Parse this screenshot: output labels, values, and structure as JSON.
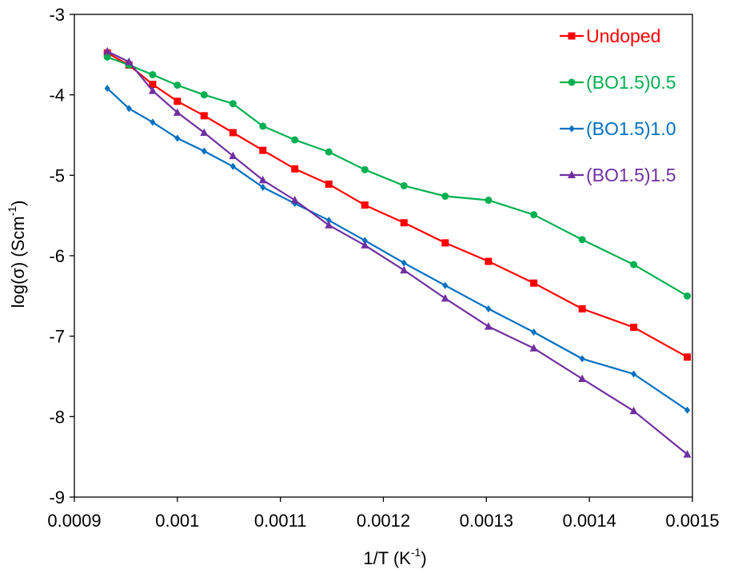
{
  "chart_data": {
    "type": "line",
    "title": "",
    "xlabel": "1/T (K",
    "xlabel_sup": "-1",
    "xlabel_close": ")",
    "ylabel": "log(σ) (Scm",
    "ylabel_sup": "-1",
    "ylabel_close": ")",
    "xlim": [
      0.0009,
      0.0015
    ],
    "ylim": [
      -9,
      -3
    ],
    "xticks": [
      0.0009,
      0.001,
      0.0011,
      0.0012,
      0.0013,
      0.0014,
      0.0015
    ],
    "xtick_labels": [
      "0.0009",
      "0.001",
      "0.0011",
      "0.0012",
      "0.0013",
      "0.0014",
      "0.0015"
    ],
    "yticks": [
      -3,
      -4,
      -5,
      -6,
      -7,
      -8,
      -9
    ],
    "ytick_labels": [
      "-3",
      "-4",
      "-5",
      "-6",
      "-7",
      "-8",
      "-9"
    ],
    "grid": false,
    "legend_position": "top-right",
    "x": [
      0.000932,
      0.000953,
      0.000976,
      0.001,
      0.001026,
      0.001054,
      0.001083,
      0.001114,
      0.001147,
      0.001182,
      0.00122,
      0.00126,
      0.001302,
      0.001346,
      0.001393,
      0.001443,
      0.001495
    ],
    "series": [
      {
        "name": "Undoped",
        "color": "#ff0000",
        "marker": "square",
        "values": [
          -3.48,
          -3.63,
          -3.87,
          -4.08,
          -4.26,
          -4.47,
          -4.69,
          -4.92,
          -5.11,
          -5.37,
          -5.59,
          -5.84,
          -6.07,
          -6.34,
          -6.66,
          -6.89,
          -7.26
        ]
      },
      {
        "name": "(BO1.5)0.5",
        "color": "#00b050",
        "marker": "circle",
        "values": [
          -3.53,
          -3.63,
          -3.75,
          -3.88,
          -4.0,
          -4.11,
          -4.39,
          -4.56,
          -4.71,
          -4.93,
          -5.13,
          -5.26,
          -5.31,
          -5.49,
          -5.8,
          -6.11,
          -6.5
        ]
      },
      {
        "name": "(BO1.5)1.0",
        "color": "#0070c0",
        "marker": "diamond",
        "values": [
          -3.92,
          -4.17,
          -4.34,
          -4.54,
          -4.7,
          -4.89,
          -5.15,
          -5.35,
          -5.56,
          -5.81,
          -6.09,
          -6.37,
          -6.66,
          -6.95,
          -7.28,
          -7.47,
          -7.92
        ]
      },
      {
        "name": "(BO1.5)1.5",
        "color": "#7030a0",
        "marker": "triangle",
        "values": [
          -3.46,
          -3.59,
          -3.95,
          -4.22,
          -4.47,
          -4.76,
          -5.06,
          -5.31,
          -5.62,
          -5.87,
          -6.18,
          -6.53,
          -6.88,
          -7.15,
          -7.53,
          -7.93,
          -8.47
        ]
      }
    ]
  }
}
